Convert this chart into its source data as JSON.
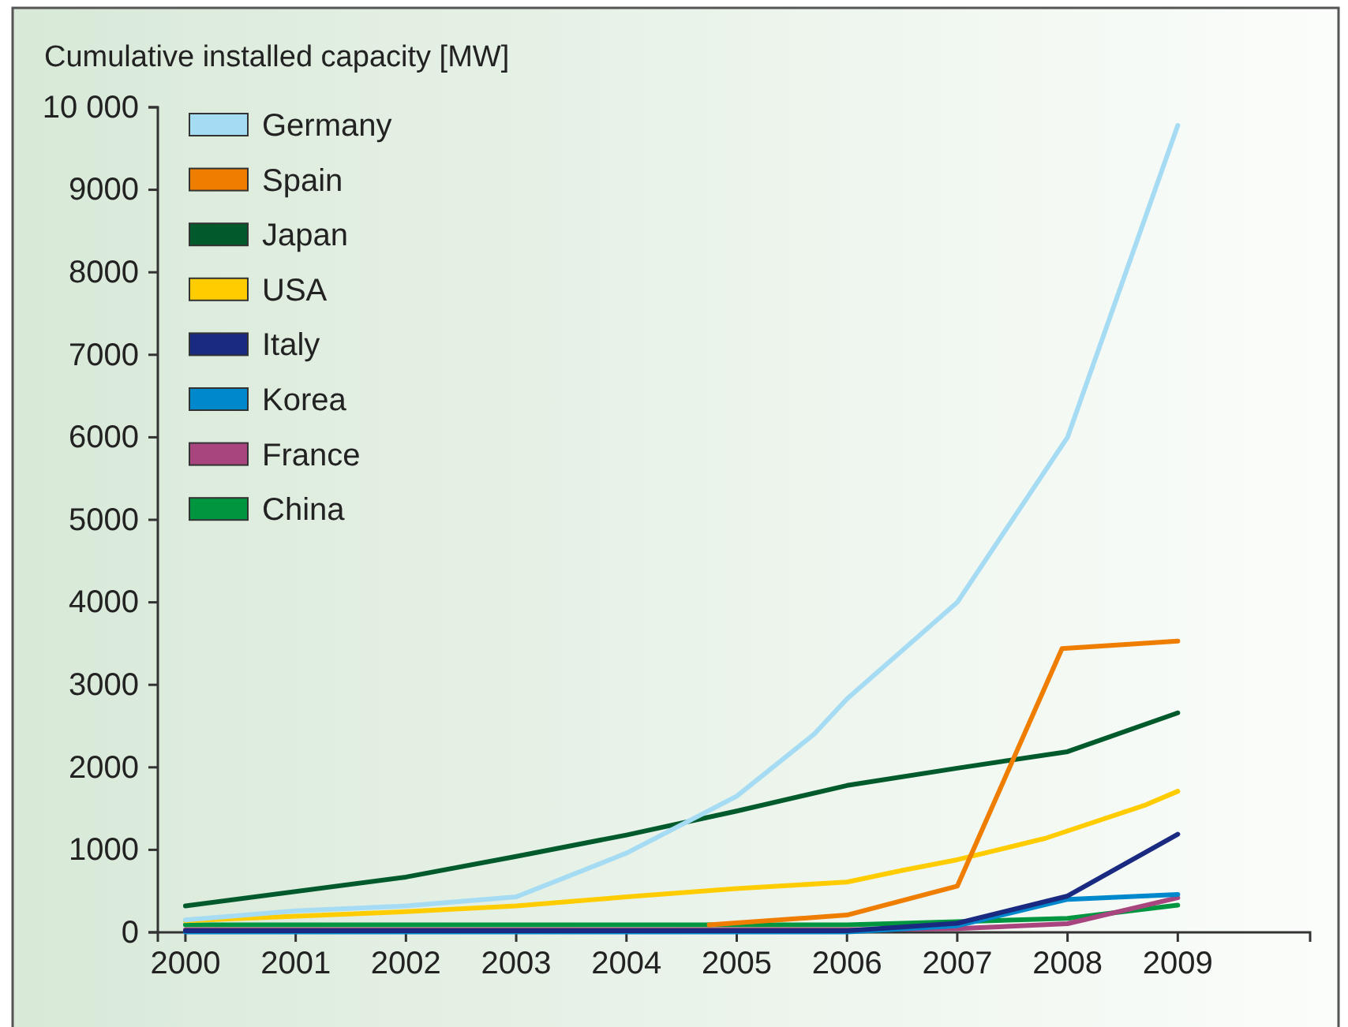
{
  "chart_data": {
    "type": "line",
    "ylabel": "Cumulative installed capacity [MW]",
    "xlim": [
      1999.75,
      2010.2
    ],
    "xticks": [
      2000,
      2001,
      2002,
      2003,
      2004,
      2005,
      2006,
      2007,
      2008,
      2009
    ],
    "ylim": [
      0,
      10000
    ],
    "yticks": [
      0,
      1000,
      2000,
      3000,
      4000,
      5000,
      6000,
      7000,
      8000,
      9000,
      {
        "value": 10000,
        "label": "10 000"
      }
    ],
    "grid": false,
    "legend": "top left",
    "series": [
      {
        "name": "Germany",
        "color": "#a6dcf3",
        "x": [
          2000,
          2001,
          2002,
          2003,
          2004,
          2005,
          2005.7,
          2006,
          2007,
          2008,
          2009
        ],
        "values": [
          150,
          260,
          320,
          430,
          960,
          1650,
          2400,
          2830,
          4000,
          6000,
          9780
        ]
      },
      {
        "name": "Spain",
        "color": "#ef7d00",
        "x": [
          2004.75,
          2006,
          2007,
          2007.95,
          2009
        ],
        "values": [
          90,
          210,
          560,
          3440,
          3530
        ]
      },
      {
        "name": "Japan",
        "color": "#005a2b",
        "x": [
          2000,
          2002,
          2003,
          2004,
          2005,
          2006,
          2007,
          2008,
          2009
        ],
        "values": [
          320,
          670,
          920,
          1180,
          1470,
          1780,
          1990,
          2190,
          2660
        ]
      },
      {
        "name": "USA",
        "color": "#ffcc00",
        "x": [
          2000,
          2002,
          2003,
          2004,
          2005,
          2006,
          2006.5,
          2007,
          2007.8,
          2008.7,
          2009
        ],
        "values": [
          140,
          250,
          320,
          430,
          530,
          610,
          750,
          880,
          1140,
          1540,
          1710
        ]
      },
      {
        "name": "Italy",
        "color": "#1a2a80",
        "x": [
          2000,
          2006,
          2007,
          2008,
          2009
        ],
        "values": [
          20,
          20,
          110,
          440,
          1190
        ]
      },
      {
        "name": "Korea",
        "color": "#0088cc",
        "x": [
          2000,
          2006,
          2007,
          2008,
          2009
        ],
        "values": [
          5,
          5,
          80,
          400,
          460
        ]
      },
      {
        "name": "France",
        "color": "#a8447e",
        "x": [
          2000,
          2006,
          2007,
          2008,
          2009
        ],
        "values": [
          30,
          30,
          45,
          105,
          420
        ]
      },
      {
        "name": "China",
        "color": "#009640",
        "x": [
          2000,
          2006,
          2007,
          2008,
          2009
        ],
        "values": [
          90,
          90,
          130,
          170,
          330
        ]
      }
    ]
  }
}
